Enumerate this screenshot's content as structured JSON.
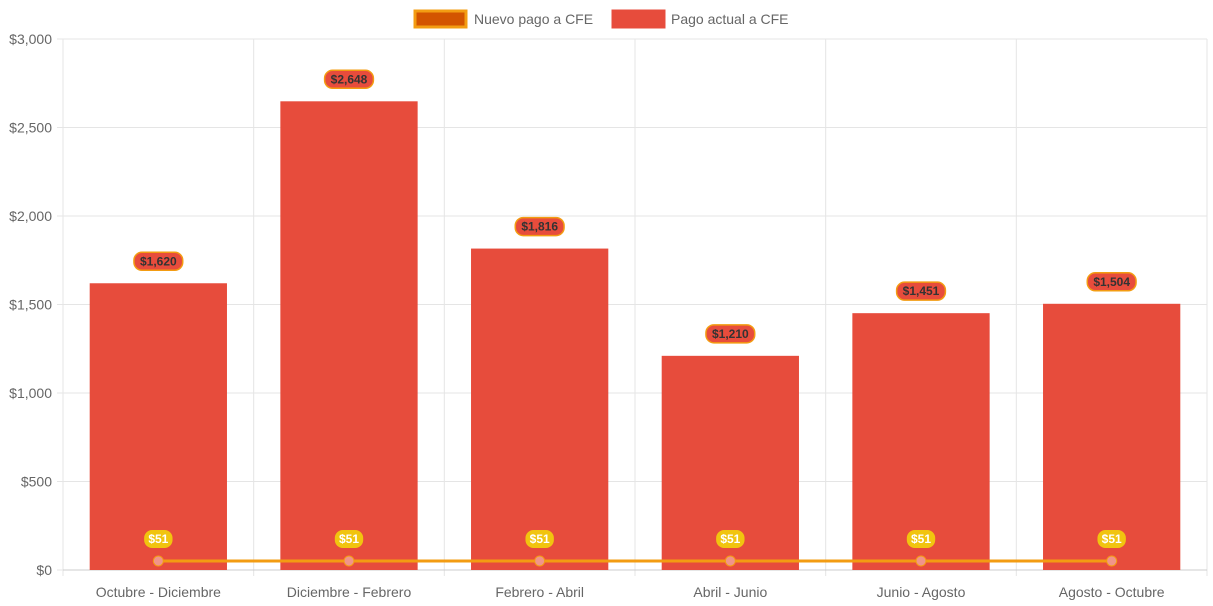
{
  "chart_data": {
    "type": "bar",
    "categories": [
      "Octubre - Diciembre",
      "Diciembre - Febrero",
      "Febrero - Abril",
      "Abril - Junio",
      "Junio - Agosto",
      "Agosto - Octubre"
    ],
    "series": [
      {
        "name": "Nuevo pago a CFE",
        "type": "line",
        "values": [
          51,
          51,
          51,
          51,
          51,
          51
        ],
        "labels": [
          "$51",
          "$51",
          "$51",
          "$51",
          "$51",
          "$51"
        ],
        "color": "#F39C12",
        "legend_fill": "#D35400"
      },
      {
        "name": "Pago actual a CFE",
        "type": "bar",
        "values": [
          1620,
          2648,
          1816,
          1210,
          1451,
          1504
        ],
        "labels": [
          "$1,620",
          "$2,648",
          "$1,816",
          "$1,210",
          "$1,451",
          "$1,504"
        ],
        "color": "#E74C3C"
      }
    ],
    "ylim": [
      0,
      3000
    ],
    "yticks": [
      0,
      500,
      1000,
      1500,
      2000,
      2500,
      3000
    ],
    "ytick_labels": [
      "$0",
      "$500",
      "$1,000",
      "$1,500",
      "$2,000",
      "$2,500",
      "$3,000"
    ],
    "grid": true,
    "legend_position": "top-center",
    "colors": {
      "grid": "#e5e5e5",
      "axis_text": "#666666",
      "bar_label_bg": "#E74C3C",
      "bar_label_border": "#F39C12",
      "bar_label_text": "#333333",
      "line_label_bg": "#F1C40F",
      "line_label_text": "#ffffff",
      "line_point": "#F1948A"
    }
  }
}
